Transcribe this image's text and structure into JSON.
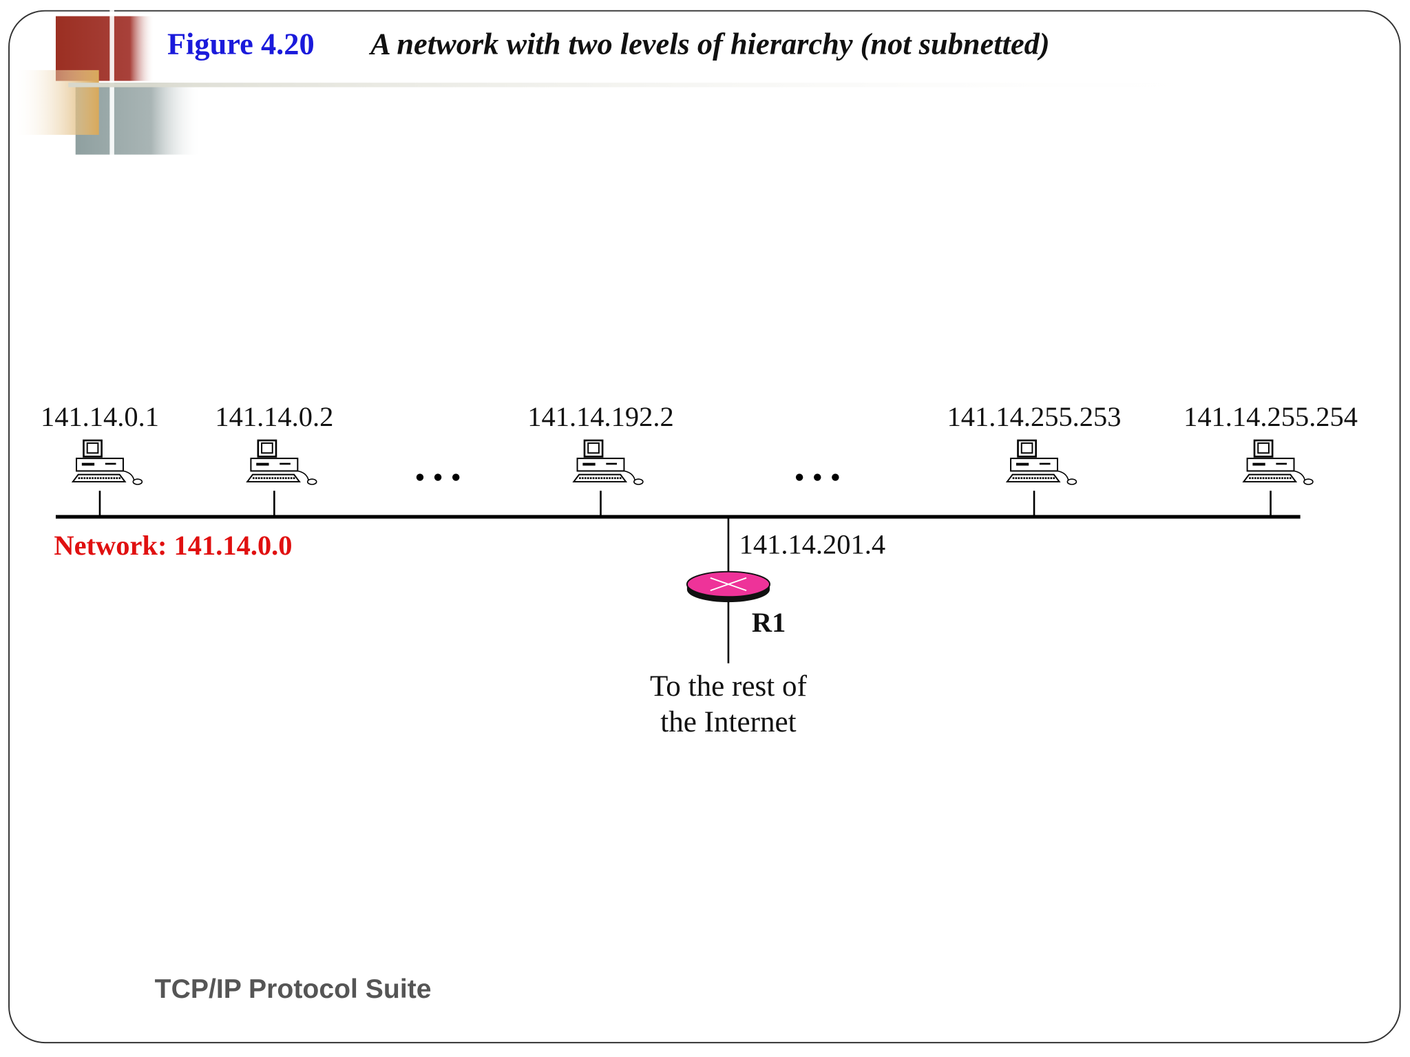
{
  "header": {
    "figure_label": "Figure 4.20",
    "caption": "A network with two levels of hierarchy (not subnetted)"
  },
  "diagram": {
    "hosts": [
      {
        "label": "141.14.0.1"
      },
      {
        "label": "141.14.0.2"
      },
      {
        "label": "141.14.192.2"
      },
      {
        "label": "141.14.255.253"
      },
      {
        "label": "141.14.255.254"
      }
    ],
    "network_label": "Network: 141.14.0.0",
    "router": {
      "interface_label": "141.14.201.4",
      "name": "R1"
    },
    "internet_label": [
      "To the rest of",
      "the Internet"
    ]
  },
  "footer": {
    "text": "TCP/IP Protocol Suite"
  }
}
